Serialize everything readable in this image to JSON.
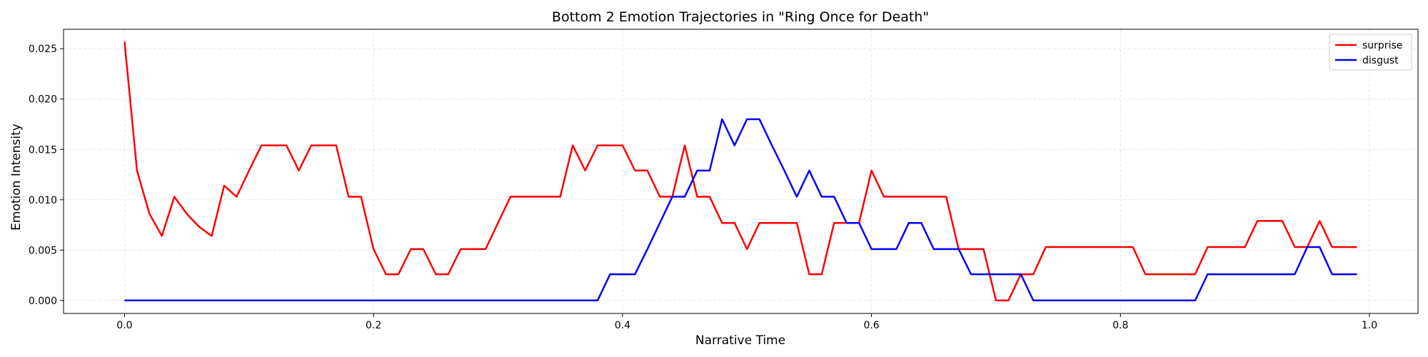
{
  "chart_data": {
    "type": "line",
    "title": "Bottom 2 Emotion Trajectories in \"Ring Once for Death\"",
    "xlabel": "Narrative Time",
    "ylabel": "Emotion Intensity",
    "xlim": [
      -0.049,
      1.039
    ],
    "ylim": [
      -0.00129,
      0.02693
    ],
    "grid": true,
    "legend_position": "top-right",
    "x_ticks": [
      "0.0",
      "0.2",
      "0.4",
      "0.6",
      "0.8",
      "1.0"
    ],
    "y_ticks": [
      "0.000",
      "0.005",
      "0.010",
      "0.015",
      "0.020",
      "0.025"
    ],
    "x": [
      0.0,
      0.01,
      0.02,
      0.03,
      0.04,
      0.05,
      0.06,
      0.07,
      0.08,
      0.09,
      0.1,
      0.11,
      0.12,
      0.13,
      0.14,
      0.15,
      0.16,
      0.17,
      0.18,
      0.19,
      0.2,
      0.21,
      0.22,
      0.23,
      0.24,
      0.25,
      0.26,
      0.27,
      0.28,
      0.29,
      0.3,
      0.31,
      0.32,
      0.33,
      0.34,
      0.35,
      0.36,
      0.37,
      0.38,
      0.39,
      0.4,
      0.41,
      0.42,
      0.43,
      0.44,
      0.45,
      0.46,
      0.47,
      0.48,
      0.49,
      0.5,
      0.51,
      0.52,
      0.53,
      0.54,
      0.55,
      0.56,
      0.57,
      0.58,
      0.59,
      0.6,
      0.61,
      0.62,
      0.63,
      0.64,
      0.65,
      0.66,
      0.67,
      0.68,
      0.69,
      0.7,
      0.71,
      0.72,
      0.73,
      0.74,
      0.75,
      0.76,
      0.77,
      0.78,
      0.79,
      0.8,
      0.81,
      0.82,
      0.83,
      0.84,
      0.85,
      0.86,
      0.87,
      0.88,
      0.89,
      0.9,
      0.91,
      0.92,
      0.93,
      0.94,
      0.95,
      0.96,
      0.97,
      0.98,
      0.99
    ],
    "series": [
      {
        "name": "surprise",
        "color": "#ff0000",
        "values": [
          0.0257,
          0.0129,
          0.0086,
          0.0064,
          0.0103,
          0.0086,
          0.0073,
          0.0064,
          0.0114,
          0.0103,
          0.0129,
          0.0154,
          0.0154,
          0.0154,
          0.0129,
          0.0154,
          0.0154,
          0.0154,
          0.0103,
          0.0103,
          0.0051,
          0.0026,
          0.0026,
          0.0051,
          0.0051,
          0.0026,
          0.0026,
          0.0051,
          0.0051,
          0.0051,
          0.0077,
          0.0103,
          0.0103,
          0.0103,
          0.0103,
          0.0103,
          0.0154,
          0.0129,
          0.0154,
          0.0154,
          0.0154,
          0.0129,
          0.0129,
          0.0103,
          0.0103,
          0.0154,
          0.0103,
          0.0103,
          0.0077,
          0.0077,
          0.0051,
          0.0077,
          0.0077,
          0.0077,
          0.0077,
          0.0026,
          0.0026,
          0.0077,
          0.0077,
          0.0077,
          0.0129,
          0.0103,
          0.0103,
          0.0103,
          0.0103,
          0.0103,
          0.0103,
          0.0051,
          0.0051,
          0.0051,
          0.0,
          0.0,
          0.0026,
          0.0026,
          0.0053,
          0.0053,
          0.0053,
          0.0053,
          0.0053,
          0.0053,
          0.0053,
          0.0053,
          0.0026,
          0.0026,
          0.0026,
          0.0026,
          0.0026,
          0.0053,
          0.0053,
          0.0053,
          0.0053,
          0.0079,
          0.0079,
          0.0079,
          0.0053,
          0.0053,
          0.0079,
          0.0053,
          0.0053,
          0.0053
        ]
      },
      {
        "name": "disgust",
        "color": "#0000ff",
        "values": [
          0,
          0,
          0,
          0,
          0,
          0,
          0,
          0,
          0,
          0,
          0,
          0,
          0,
          0,
          0,
          0,
          0,
          0,
          0,
          0,
          0,
          0,
          0,
          0,
          0,
          0,
          0,
          0,
          0,
          0,
          0,
          0,
          0,
          0,
          0,
          0,
          0,
          0,
          0,
          0.0026,
          0.0026,
          0.0026,
          0.0051,
          0.0077,
          0.0103,
          0.0103,
          0.0129,
          0.0129,
          0.018,
          0.0154,
          0.018,
          0.018,
          0.0154,
          0.0129,
          0.0103,
          0.0129,
          0.0103,
          0.0103,
          0.0077,
          0.0077,
          0.0051,
          0.0051,
          0.0051,
          0.0077,
          0.0077,
          0.0051,
          0.0051,
          0.0051,
          0.0026,
          0.0026,
          0.0026,
          0.0026,
          0.0026,
          0.0,
          0.0,
          0.0,
          0.0,
          0.0,
          0.0,
          0.0,
          0.0,
          0.0,
          0.0,
          0.0,
          0.0,
          0.0,
          0.0,
          0.0026,
          0.0026,
          0.0026,
          0.0026,
          0.0026,
          0.0026,
          0.0026,
          0.0026,
          0.0053,
          0.0053,
          0.0026,
          0.0026,
          0.0026
        ]
      }
    ]
  }
}
